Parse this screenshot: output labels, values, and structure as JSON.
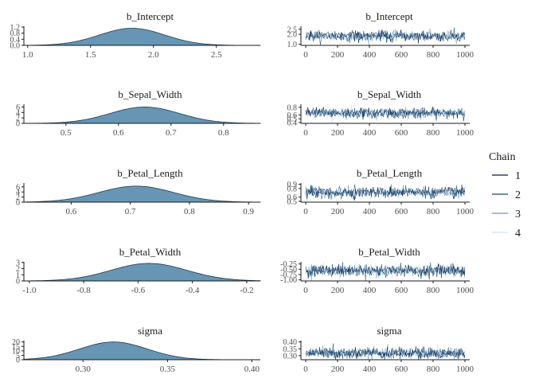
{
  "chart_data": {
    "type": "area",
    "panels": [
      {
        "parameter": "b_Intercept",
        "density": {
          "title": "b_Intercept",
          "x_ticks": [
            "1.0",
            "1.5",
            "2.0",
            "2.5"
          ],
          "xlim": [
            0.97,
            2.85
          ],
          "y_ticks": [
            "1.2",
            "0.8",
            "0.4",
            "0.0"
          ],
          "ylim": [
            0,
            1.25
          ],
          "mean": 1.83,
          "sd": 0.26,
          "ymax": 1.12
        },
        "trace": {
          "title": "b_Intercept",
          "x_ticks": [
            "0",
            "200",
            "400",
            "600",
            "800",
            "1000"
          ],
          "xlim": [
            -30,
            1030
          ],
          "y_ticks": [
            "2.5",
            "2.0",
            "1.0"
          ],
          "ylim": [
            0.9,
            2.8
          ],
          "center": 1.83,
          "spread": 0.26
        }
      },
      {
        "parameter": "b_Sepal_Width",
        "density": {
          "title": "b_Sepal_Width",
          "x_ticks": [
            "0.5",
            "0.6",
            "0.7",
            "0.8"
          ],
          "xlim": [
            0.42,
            0.87
          ],
          "y_ticks": [
            "6",
            "4",
            "2",
            "0"
          ],
          "ylim": [
            0,
            7
          ],
          "mean": 0.65,
          "sd": 0.066,
          "ymax": 6.0
        },
        "trace": {
          "title": "b_Sepal_Width",
          "x_ticks": [
            "0",
            "200",
            "400",
            "600",
            "800",
            "1000"
          ],
          "xlim": [
            -30,
            1030
          ],
          "y_ticks": [
            "0.8",
            "0.6",
            "0.5",
            "0.4"
          ],
          "ylim": [
            0.38,
            0.88
          ],
          "center": 0.65,
          "spread": 0.066
        }
      },
      {
        "parameter": "b_Petal_Length",
        "density": {
          "title": "b_Petal_Length",
          "x_ticks": [
            "0.6",
            "0.7",
            "0.8",
            "0.9"
          ],
          "xlim": [
            0.52,
            0.92
          ],
          "y_ticks": [
            "6",
            "4",
            "2",
            "0"
          ],
          "ylim": [
            0,
            7.5
          ],
          "mean": 0.71,
          "sd": 0.063,
          "ymax": 6.3
        },
        "trace": {
          "title": "b_Petal_Length",
          "x_ticks": [
            "0",
            "200",
            "400",
            "600",
            "800",
            "1000"
          ],
          "xlim": [
            -30,
            1030
          ],
          "y_ticks": [
            "0.9",
            "0.8",
            "0.6",
            "0.5"
          ],
          "ylim": [
            0.48,
            0.93
          ],
          "center": 0.71,
          "spread": 0.063
        }
      },
      {
        "parameter": "b_Petal_Width",
        "density": {
          "title": "b_Petal_Width",
          "x_ticks": [
            "-1.0",
            "-0.8",
            "-0.6",
            "-0.4",
            "-0.2"
          ],
          "xlim": [
            -1.02,
            -0.15
          ],
          "y_ticks": [
            "3",
            "2",
            "1",
            "0"
          ],
          "ylim": [
            0,
            3.1
          ],
          "mean": -0.56,
          "sd": 0.14,
          "ymax": 2.85
        },
        "trace": {
          "title": "b_Petal_Width",
          "x_ticks": [
            "0",
            "200",
            "400",
            "600",
            "800",
            "1000"
          ],
          "xlim": [
            -30,
            1030
          ],
          "y_ticks": [
            "-0.25",
            "-0.50",
            "-0.75",
            "-1.00"
          ],
          "ylim": [
            -1.05,
            -0.15
          ],
          "center": -0.56,
          "spread": 0.14
        }
      },
      {
        "parameter": "sigma",
        "density": {
          "title": "sigma",
          "x_ticks": [
            "0.30",
            "0.35",
            "0.40"
          ],
          "xlim": [
            0.265,
            0.405
          ],
          "y_ticks": [
            "20",
            "15",
            "10",
            "5",
            "0"
          ],
          "ylim": [
            0,
            21.5
          ],
          "mean": 0.318,
          "sd": 0.02,
          "ymax": 20.0
        },
        "trace": {
          "title": "sigma",
          "x_ticks": [
            "0",
            "200",
            "400",
            "600",
            "800",
            "1000"
          ],
          "xlim": [
            -30,
            1030
          ],
          "y_ticks": [
            "0.40",
            "0.35",
            "0.30"
          ],
          "ylim": [
            0.27,
            0.41
          ],
          "center": 0.318,
          "spread": 0.02
        }
      }
    ],
    "legend": {
      "title": "Chain",
      "placement": "right",
      "entries": [
        {
          "label": "1",
          "color": "#011f4b"
        },
        {
          "label": "2",
          "color": "#0f4a75"
        },
        {
          "label": "3",
          "color": "#6c9cbd"
        },
        {
          "label": "4",
          "color": "#d1e1ec"
        }
      ]
    },
    "density_fill": "#6696b3",
    "density_line": "#1f3a52",
    "grid": false
  }
}
